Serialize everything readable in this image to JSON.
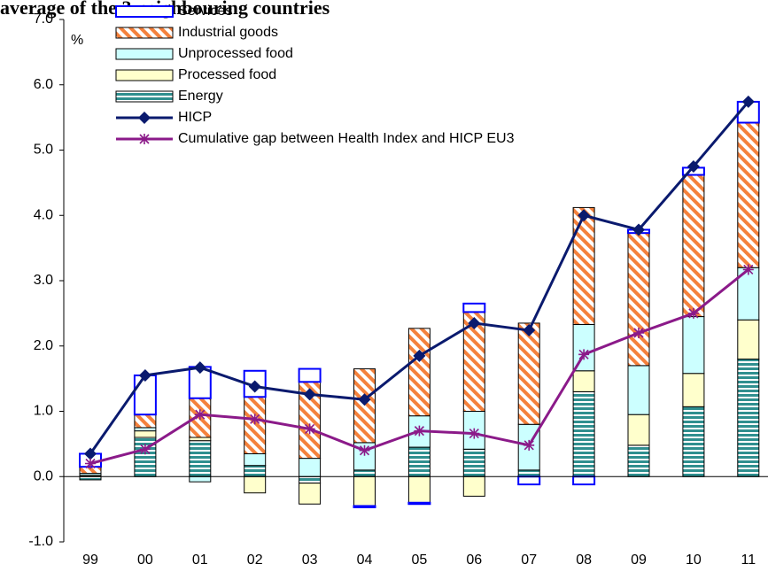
{
  "chart_data": {
    "type": "bar",
    "stacked": true,
    "title": "average of the 3 neighbouring countries",
    "y_label": "%",
    "categories": [
      "99",
      "00",
      "01",
      "02",
      "03",
      "04",
      "05",
      "06",
      "07",
      "08",
      "09",
      "10",
      "11"
    ],
    "ylim": [
      -1,
      7
    ],
    "yticks": [
      {
        "value": -1,
        "label": "-1.0"
      },
      {
        "value": 0,
        "label": "0.0"
      },
      {
        "value": 1,
        "label": "1.0"
      },
      {
        "value": 2,
        "label": "2.0"
      },
      {
        "value": 3,
        "label": "3.0"
      },
      {
        "value": 4,
        "label": "4.0"
      },
      {
        "value": 5,
        "label": "5.0"
      },
      {
        "value": 6,
        "label": "6.0"
      },
      {
        "value": 7,
        "label": "7.0"
      }
    ],
    "series": [
      {
        "name": "Services",
        "type": "bar",
        "color": "#0000ff",
        "pattern": "outline",
        "values": [
          0.2,
          0.6,
          0.48,
          0.4,
          0.2,
          -0.02,
          -0.02,
          0.13,
          -0.12,
          -0.12,
          0.05,
          0.11,
          0.32
        ]
      },
      {
        "name": "Industrial goods",
        "type": "bar",
        "color": "#f4813c",
        "pattern": "diagonal",
        "values": [
          0.1,
          0.2,
          0.6,
          0.87,
          1.17,
          1.13,
          1.34,
          1.52,
          1.55,
          1.79,
          2.03,
          2.17,
          2.22
        ]
      },
      {
        "name": "Unprocessed food",
        "type": "bar",
        "color": "#ccffff",
        "pattern": "solid",
        "values": [
          0.03,
          0.05,
          -0.08,
          0.18,
          0.28,
          0.42,
          0.48,
          0.58,
          0.7,
          0.71,
          0.75,
          0.87,
          0.8
        ]
      },
      {
        "name": "Processed food",
        "type": "bar",
        "color": "#ffffcc",
        "pattern": "solid",
        "values": [
          0.02,
          0.1,
          0.05,
          -0.25,
          -0.32,
          -0.45,
          -0.4,
          -0.3,
          0,
          0.32,
          0.47,
          0.51,
          0.6
        ]
      },
      {
        "name": "Energy",
        "type": "bar",
        "color": "#2f8f8f",
        "pattern": "horizontal",
        "values": [
          -0.05,
          0.6,
          0.55,
          0.17,
          -0.1,
          0.1,
          0.45,
          0.42,
          0.1,
          1.3,
          0.48,
          1.07,
          1.8
        ]
      },
      {
        "name": "HICP",
        "type": "line",
        "color": "#0a1a6e",
        "marker": "diamond",
        "values": [
          0.35,
          1.55,
          1.67,
          1.38,
          1.26,
          1.18,
          1.85,
          2.35,
          2.24,
          4.0,
          3.78,
          4.75,
          5.74
        ]
      },
      {
        "name": "Cumulative gap between Health Index and HICP EU3",
        "type": "line",
        "color": "#8b1a89",
        "marker": "asterisk",
        "values": [
          0.2,
          0.42,
          0.95,
          0.88,
          0.73,
          0.4,
          0.7,
          0.66,
          0.48,
          1.87,
          2.2,
          2.5,
          3.17
        ]
      }
    ]
  }
}
